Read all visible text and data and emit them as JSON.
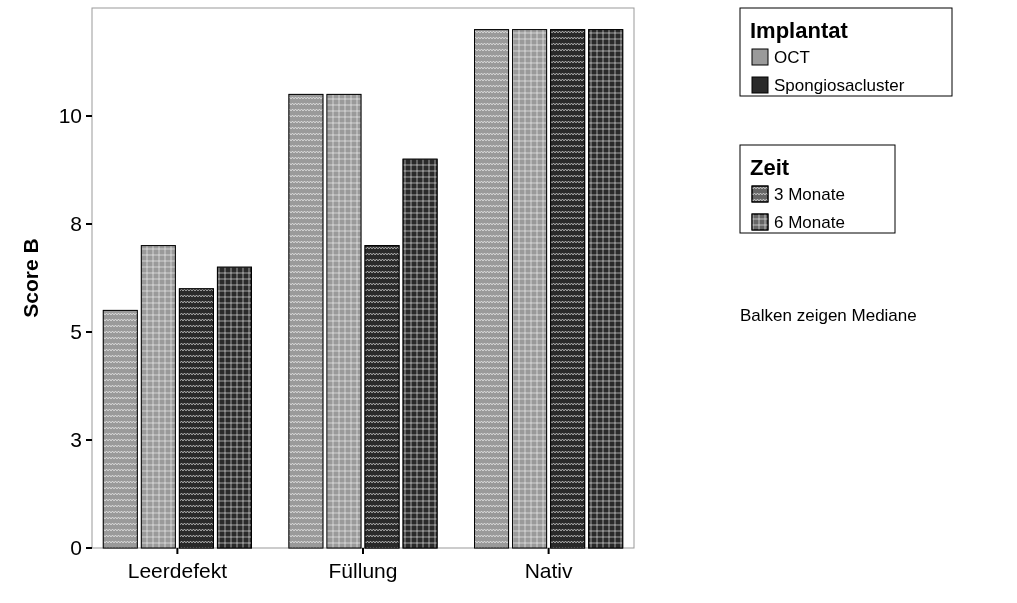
{
  "chart_data": {
    "type": "bar",
    "ylabel": "Score B",
    "categories": [
      "Leerdefekt",
      "Füllung",
      "Nativ"
    ],
    "series": [
      {
        "color": "#9a9a9a",
        "values": [
          5.5,
          10.5,
          12
        ]
      },
      {
        "color": "#9a9a9a",
        "values": [
          7,
          10.5,
          12
        ]
      },
      {
        "color": "#2a2a2a",
        "values": [
          6,
          7,
          12
        ]
      },
      {
        "color": "#2a2a2a",
        "values": [
          6.5,
          9,
          12
        ]
      }
    ],
    "ylim": [
      0,
      12.5
    ],
    "yticks": [
      0,
      {
        "value": 2.5,
        "label": "3"
      },
      5,
      {
        "value": 7.5,
        "label": "8"
      },
      10
    ],
    "grid": false,
    "annotations": [
      "Implantat",
      "OCT",
      "Spongiosacluster",
      "Zeit",
      "3 Monate",
      "6 Monate",
      "Balken zeigen Mediane"
    ]
  }
}
